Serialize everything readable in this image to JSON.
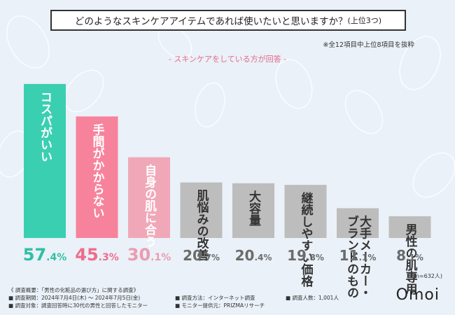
{
  "title_main": "どのようなスキンケアアイテムであれば使いたいと思いますか？",
  "title_suffix": "(上位3つ)",
  "note": "※全12項目中上位8項目を抜粋",
  "subtitle": "-  スキンケアをしている方が回答  -",
  "n_label": "(n=632人)",
  "logo": "Omoi",
  "footnotes": {
    "overview": "《 調査概要：「男性の化粧品の選び方」に関する調査》",
    "period": "■ 調査期間：2024年7月4日(木) ～ 2024年7月5日(金)",
    "target": "■ 調査対象：調査回答時に30代の男性と回答したモニター",
    "method": "■ 調査方法：インターネット調査",
    "provider": "■ モニター提供元：PRIZMAリサーチ",
    "count": "■ 調査人数：1,001人"
  },
  "colors": {
    "top1": "#3bcfb2",
    "top2": "#f7829c",
    "top3": "#f0a8b8",
    "other": "#bdbdbd",
    "pct_top1": "#2fbfa3",
    "pct_top2": "#f06c8c",
    "pct_top3": "#ec9bb0",
    "pct_other": "#6b6b6b"
  },
  "chart_data": {
    "type": "bar",
    "title": "どのようなスキンケアアイテムであれば使いたいと思いますか？(上位3つ)",
    "unit": "%",
    "ylim": [
      0,
      60
    ],
    "categories": [
      "コスパがいい",
      "手間がかからない",
      "自身の肌に合う",
      "肌悩みの改善",
      "大容量",
      "継続しやすい価格",
      "大手メーカー・ブランドのもの",
      "男性の肌専用"
    ],
    "label_lines": [
      [
        "コスパがいい"
      ],
      [
        "手間がかからない"
      ],
      [
        "自身の肌に合う"
      ],
      [
        "肌悩みの改善"
      ],
      [
        "大容量"
      ],
      [
        "継続しやすい価格"
      ],
      [
        "大手メーカー・",
        "ブランドのもの"
      ],
      [
        "男性の肌専用"
      ]
    ],
    "values": [
      57.4,
      45.3,
      30.1,
      20.7,
      20.4,
      19.8,
      11.1,
      8.1
    ],
    "value_labels": [
      [
        "57",
        ".4%"
      ],
      [
        "45",
        ".3%"
      ],
      [
        "30",
        ".1%"
      ],
      [
        "20",
        ".7%"
      ],
      [
        "20",
        ".4%"
      ],
      [
        "19",
        ".8%"
      ],
      [
        "11",
        ".1%"
      ],
      [
        "8",
        ".1%"
      ]
    ],
    "color_keys": [
      "top1",
      "top2",
      "top3",
      "other",
      "other",
      "other",
      "other",
      "other"
    ]
  }
}
